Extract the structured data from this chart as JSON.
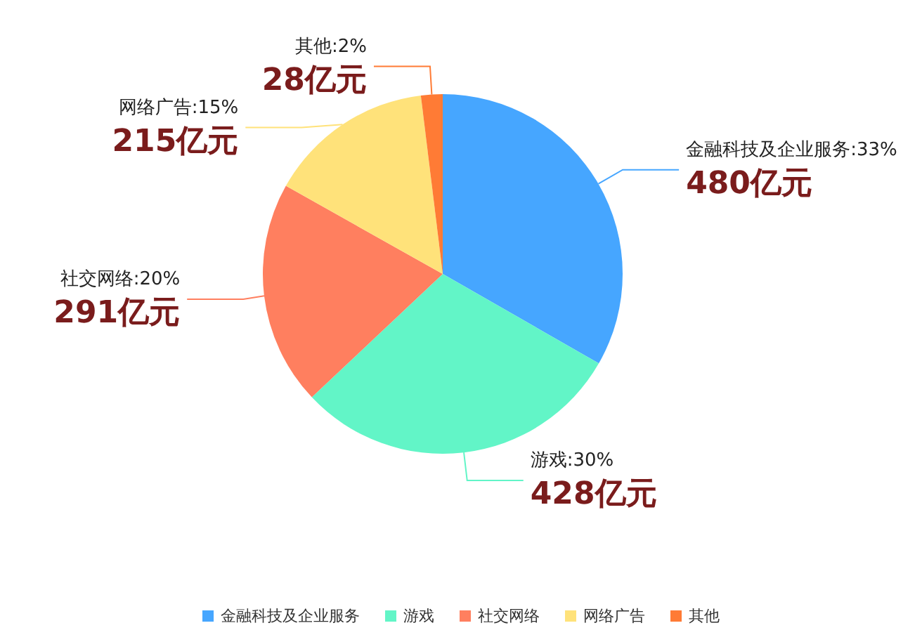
{
  "chart_data": {
    "type": "pie",
    "categories": [
      "金融科技及企业服务",
      "游戏",
      "社交网络",
      "网络广告",
      "其他"
    ],
    "values": [
      480,
      428,
      291,
      215,
      28
    ],
    "value_labels": [
      "金融科技及企业服务:33%\n480亿元",
      "游戏:30%\n428亿元",
      "社交网络:20%\n291亿元",
      "网络广告:15%\n215亿元",
      "其他:2%\n28亿元"
    ],
    "colors": [
      "#46a6ff",
      "#62f5c7",
      "#ff7f5f",
      "#ffe27a",
      "#ff7b35"
    ],
    "legend": "bottom"
  }
}
